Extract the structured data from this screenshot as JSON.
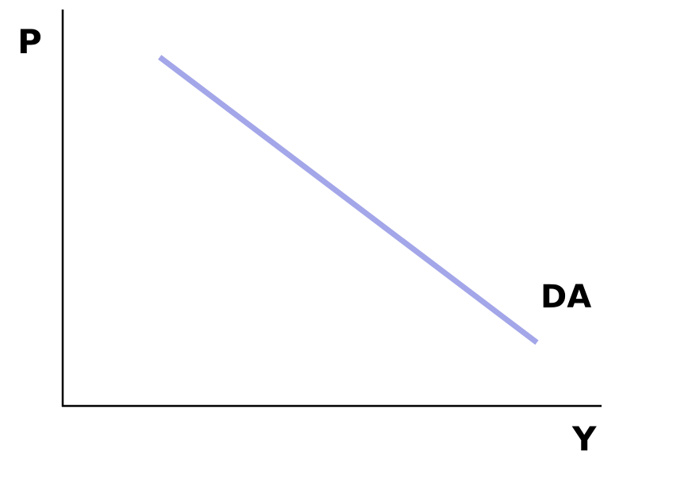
{
  "chart_data": {
    "type": "line",
    "title": "",
    "xlabel": "Y",
    "ylabel": "P",
    "xlim": [
      0,
      10
    ],
    "ylim": [
      0,
      10
    ],
    "grid": false,
    "legend": "none",
    "series": [
      {
        "name": "DA",
        "color": "#a3a6e8",
        "x": [
          1.8,
          8.8
        ],
        "y": [
          8.8,
          1.6
        ]
      }
    ]
  }
}
